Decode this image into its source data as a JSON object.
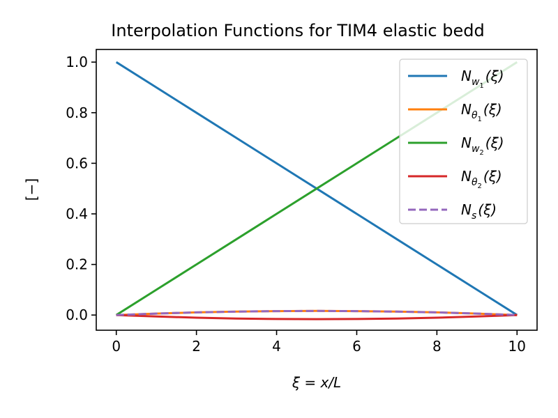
{
  "chart_data": {
    "type": "line",
    "title": "Interpolation Functions for TIM4 elastic bedd",
    "xlabel": "ξ = x/L",
    "ylabel": "[−]",
    "xlim": [
      -0.5,
      10.5
    ],
    "ylim": [
      -0.06,
      1.05
    ],
    "xticks": [
      "0",
      "2",
      "4",
      "6",
      "8",
      "10"
    ],
    "yticks": [
      "0.0",
      "0.2",
      "0.4",
      "0.6",
      "0.8",
      "1.0"
    ],
    "grid": false,
    "legend_position": "top-right",
    "x": [
      0,
      1,
      2,
      3,
      4,
      5,
      6,
      7,
      8,
      9,
      10
    ],
    "series": [
      {
        "name": "N_{w_1}(ξ)",
        "label_main": "N",
        "label_sub": "w",
        "label_subsub": "1",
        "label_tail": "(ξ)",
        "color": "#1f77b4",
        "dash": "solid",
        "values": [
          1.0,
          0.9,
          0.8,
          0.7,
          0.6,
          0.5,
          0.4,
          0.3,
          0.2,
          0.1,
          0.0
        ]
      },
      {
        "name": "N_{θ_1}(ξ)",
        "label_main": "N",
        "label_sub": "θ",
        "label_subsub": "1",
        "label_tail": "(ξ)",
        "color": "#ff7f0e",
        "dash": "solid",
        "values": [
          0.0,
          0.0058,
          0.0104,
          0.0136,
          0.0156,
          0.0162,
          0.0156,
          0.0136,
          0.0104,
          0.0058,
          0.0
        ]
      },
      {
        "name": "N_{w_2}(ξ)",
        "label_main": "N",
        "label_sub": "w",
        "label_subsub": "2",
        "label_tail": "(ξ)",
        "color": "#2ca02c",
        "dash": "solid",
        "values": [
          0.0,
          0.1,
          0.2,
          0.3,
          0.4,
          0.5,
          0.6,
          0.7,
          0.8,
          0.9,
          1.0
        ]
      },
      {
        "name": "N_{θ_2}(ξ)",
        "label_main": "N",
        "label_sub": "θ",
        "label_subsub": "2",
        "label_tail": "(ξ)",
        "color": "#d62728",
        "dash": "solid",
        "values": [
          0.0,
          -0.0058,
          -0.0104,
          -0.0136,
          -0.0156,
          -0.0162,
          -0.0156,
          -0.0136,
          -0.0104,
          -0.0058,
          0.0
        ]
      },
      {
        "name": "N_s(ξ)",
        "label_main": "N",
        "label_sub": "s",
        "label_subsub": "",
        "label_tail": "(ξ)",
        "color": "#9467bd",
        "dash": "dashed",
        "values": [
          0.0,
          0.0058,
          0.0104,
          0.0136,
          0.0156,
          0.0162,
          0.0156,
          0.0136,
          0.0104,
          0.0058,
          0.0
        ]
      }
    ]
  }
}
